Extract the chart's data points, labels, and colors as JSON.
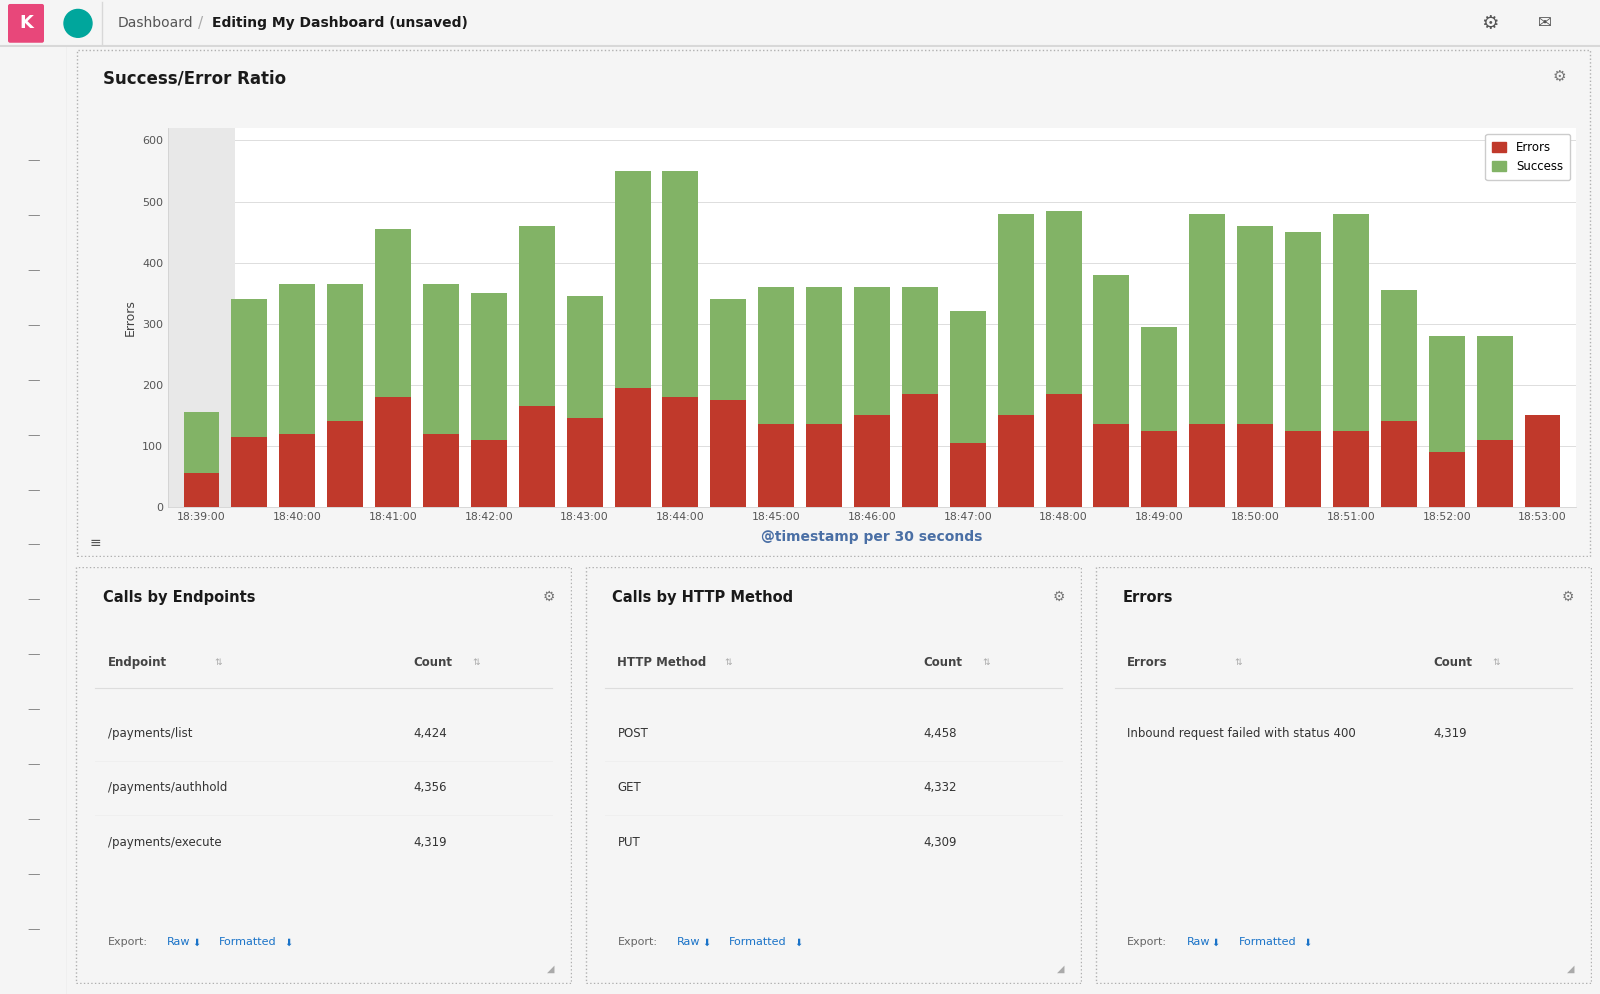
{
  "title": "Success/Error Ratio",
  "xlabel": "@timestamp per 30 seconds",
  "ylabel": "Errors",
  "ylim": [
    0,
    620
  ],
  "yticks": [
    0,
    100,
    200,
    300,
    400,
    500,
    600
  ],
  "xtick_labels": [
    "18:39:00",
    "18:40:00",
    "18:41:00",
    "18:42:00",
    "18:43:00",
    "18:44:00",
    "18:45:00",
    "18:46:00",
    "18:47:00",
    "18:48:00",
    "18:49:00",
    "18:50:00",
    "18:51:00",
    "18:52:00",
    "18:53:00"
  ],
  "errors": [
    55,
    115,
    120,
    140,
    180,
    120,
    110,
    165,
    145,
    195,
    180,
    175,
    135,
    135,
    150,
    185,
    105,
    150,
    185,
    135,
    125,
    135,
    135,
    125,
    125,
    140,
    90,
    110,
    150
  ],
  "success": [
    100,
    225,
    245,
    225,
    275,
    245,
    240,
    295,
    200,
    355,
    370,
    165,
    225,
    225,
    210,
    175,
    215,
    330,
    300,
    245,
    170,
    345,
    325,
    325,
    355,
    215,
    190,
    170,
    0
  ],
  "error_color": "#c0392b",
  "success_color": "#82b366",
  "legend_errors_label": "Errors",
  "legend_success_label": "Success",
  "chart_title_fontsize": 12,
  "panel1_title": "Calls by Endpoints",
  "panel2_title": "Calls by HTTP Method",
  "panel3_title": "Errors",
  "endpoints": [
    "/payments/list",
    "/payments/authhold",
    "/payments/execute"
  ],
  "endpoint_counts": [
    "4,424",
    "4,356",
    "4,319"
  ],
  "http_methods": [
    "POST",
    "GET",
    "PUT"
  ],
  "http_counts": [
    "4,458",
    "4,332",
    "4,309"
  ],
  "error_rows": [
    "Inbound request failed with status 400"
  ],
  "error_counts": [
    "4,319"
  ],
  "top_bar_color": "#ffffff",
  "sidebar_color": "#ffffff",
  "content_bg": "#f5f5f5",
  "panel_bg": "#ffffff",
  "panel_border": "#cccccc",
  "grid_color": "#dddddd",
  "export_color": "#1a73c8",
  "table_header_color": "#444444",
  "table_text_color": "#333333",
  "nav_icon_color": "#555555",
  "axis_label_color": "#444444",
  "xlabel_color": "#4a6fa5",
  "tick_color": "#555555"
}
